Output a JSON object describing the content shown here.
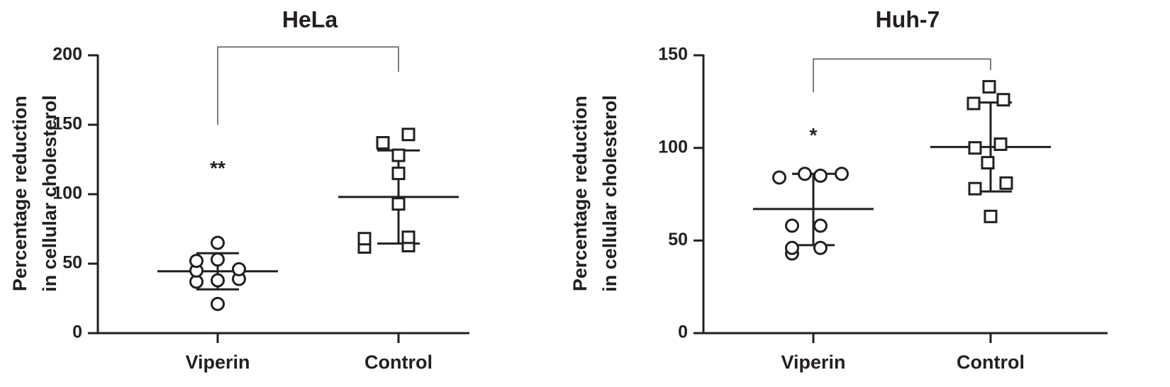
{
  "chart_data": [
    {
      "type": "scatter",
      "title": "HeLa",
      "xlabel": "",
      "ylabel": [
        "Percentage reduction",
        "in cellular cholesterol"
      ],
      "categories": [
        "Viperin",
        "Control"
      ],
      "ylim": [
        0,
        200
      ],
      "yticks": [
        0,
        50,
        100,
        150,
        200
      ],
      "series": [
        {
          "category": "Viperin",
          "marker": "circle",
          "values": [
            21,
            37,
            38,
            39,
            45,
            46,
            52,
            53,
            65
          ],
          "mean": 44.5,
          "sd_low": 31.5,
          "sd_high": 57.5
        },
        {
          "category": "Control",
          "marker": "square",
          "values": [
            62,
            63,
            68,
            69,
            93,
            115,
            128,
            137,
            143
          ],
          "mean": 98,
          "sd_low": 64.5,
          "sd_high": 131.5
        }
      ],
      "significance": "**",
      "significance_y": 123,
      "bracket": {
        "y_top": 206,
        "left_bottom": 150,
        "right_bottom": 188
      }
    },
    {
      "type": "scatter",
      "title": "Huh-7",
      "xlabel": "",
      "ylabel": [
        "Percentage reduction",
        "in cellular cholesterol"
      ],
      "categories": [
        "Viperin",
        "Control"
      ],
      "ylim": [
        0,
        150
      ],
      "yticks": [
        0,
        50,
        100,
        150
      ],
      "series": [
        {
          "category": "Viperin",
          "marker": "circle",
          "values": [
            43,
            46,
            46,
            58,
            58,
            84,
            85,
            86,
            86
          ],
          "mean": 67,
          "sd_low": 47.5,
          "sd_high": 86
        },
        {
          "category": "Control",
          "marker": "square",
          "values": [
            63,
            78,
            81,
            92,
            100,
            102,
            124,
            126,
            133
          ],
          "mean": 100.5,
          "sd_low": 76.5,
          "sd_high": 124.5
        }
      ],
      "significance": "*",
      "significance_y": 110,
      "bracket": {
        "y_top": 148,
        "left_bottom": 130,
        "right_bottom": 142
      }
    }
  ]
}
